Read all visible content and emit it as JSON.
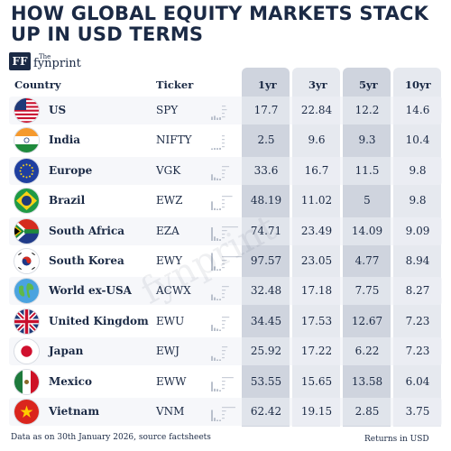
{
  "title": "HOW GLOBAL EQUITY MARKETS STACK UP IN USD TERMS",
  "brand": {
    "the": "The",
    "name": "fynprint",
    "mark": "FF"
  },
  "watermark": "fynprint",
  "headers": {
    "country": "Country",
    "ticker": "Ticker",
    "y1": "1yr",
    "y3": "3yr",
    "y5": "5yr",
    "y10": "10yr"
  },
  "footer": {
    "note": "Data as on 30th January 2026, source factsheets",
    "units": "Returns in USD"
  },
  "chart_data": {
    "type": "table",
    "columns": [
      "Country",
      "Ticker",
      "1yr",
      "3yr",
      "5yr",
      "10yr"
    ],
    "rows": [
      {
        "country": "US",
        "ticker": "SPY",
        "y1": "17.7",
        "y3": "22.84",
        "y5": "12.2",
        "y10": "14.6"
      },
      {
        "country": "India",
        "ticker": "NIFTY",
        "y1": "2.5",
        "y3": "9.6",
        "y5": "9.3",
        "y10": "10.4"
      },
      {
        "country": "Europe",
        "ticker": "VGK",
        "y1": "33.6",
        "y3": "16.7",
        "y5": "11.5",
        "y10": "9.8"
      },
      {
        "country": "Brazil",
        "ticker": "EWZ",
        "y1": "48.19",
        "y3": "11.02",
        "y5": "5",
        "y10": "9.8"
      },
      {
        "country": "South Africa",
        "ticker": "EZA",
        "y1": "74.71",
        "y3": "23.49",
        "y5": "14.09",
        "y10": "9.09"
      },
      {
        "country": "South Korea",
        "ticker": "EWY",
        "y1": "97.57",
        "y3": "23.05",
        "y5": "4.77",
        "y10": "8.94"
      },
      {
        "country": "World ex-USA",
        "ticker": "ACWX",
        "y1": "32.48",
        "y3": "17.18",
        "y5": "7.75",
        "y10": "8.27"
      },
      {
        "country": "United Kingdom",
        "ticker": "EWU",
        "y1": "34.45",
        "y3": "17.53",
        "y5": "12.67",
        "y10": "7.23"
      },
      {
        "country": "Japan",
        "ticker": "EWJ",
        "y1": "25.92",
        "y3": "17.22",
        "y5": "6.22",
        "y10": "7.23"
      },
      {
        "country": "Mexico",
        "ticker": "EWW",
        "y1": "53.55",
        "y3": "15.65",
        "y5": "13.58",
        "y10": "6.04"
      },
      {
        "country": "Vietnam",
        "ticker": "VNM",
        "y1": "62.42",
        "y3": "19.15",
        "y5": "2.85",
        "y10": "3.75"
      }
    ],
    "flags": [
      "us-flag-icon",
      "india-flag-icon",
      "eu-flag-icon",
      "brazil-flag-icon",
      "south-africa-flag-icon",
      "south-korea-flag-icon",
      "globe-icon",
      "uk-flag-icon",
      "japan-flag-icon",
      "mexico-flag-icon",
      "vietnam-flag-icon"
    ]
  },
  "colors": {
    "navy": "#1b2a45",
    "band_dark": "#cfd4de",
    "band_light": "#e6e9ef",
    "row_stripe": "#eef1f6"
  }
}
